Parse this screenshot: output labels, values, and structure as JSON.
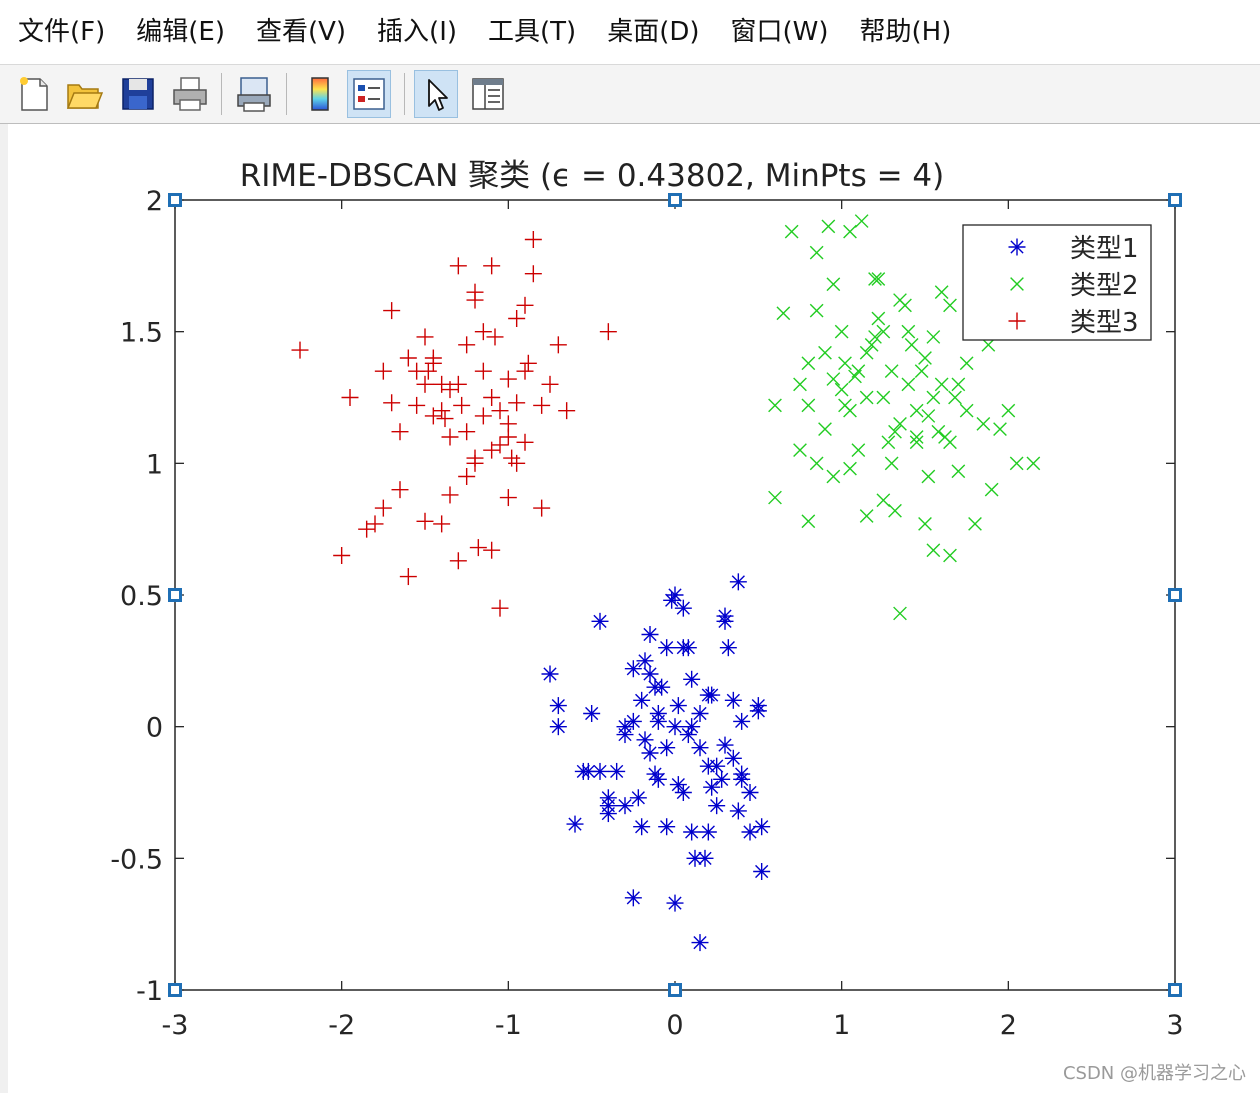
{
  "menu": {
    "items": [
      "文件(F)",
      "编辑(E)",
      "查看(V)",
      "插入(I)",
      "工具(T)",
      "桌面(D)",
      "窗口(W)",
      "帮助(H)"
    ]
  },
  "toolbar": {
    "buttons": [
      {
        "icon": "new-file-icon"
      },
      {
        "icon": "open-folder-icon"
      },
      {
        "icon": "save-icon"
      },
      {
        "icon": "print-icon"
      },
      {
        "icon": "print-preview-icon"
      },
      {
        "icon": "colorbar-icon"
      },
      {
        "icon": "legend-icon",
        "active": true
      },
      {
        "icon": "pointer-icon",
        "active": true
      },
      {
        "icon": "property-editor-icon"
      }
    ]
  },
  "watermark": "CSDN @机器学习之心",
  "chart_data": {
    "type": "scatter",
    "title": "RIME-DBSCAN 聚类 (ϵ = 0.43802, MinPts = 4)",
    "xlabel": "",
    "ylabel": "",
    "xlim": [
      -3,
      3
    ],
    "ylim": [
      -1,
      2
    ],
    "xticks": [
      "-3",
      "-2",
      "-1",
      "0",
      "1",
      "2",
      "3"
    ],
    "yticks": [
      "-1",
      "-0.5",
      "0",
      "0.5",
      "1",
      "1.5",
      "2"
    ],
    "grid": false,
    "legend_position": "top-right",
    "series": [
      {
        "name": "类型1",
        "marker": "*",
        "color": "#0000cc",
        "x": [
          -0.75,
          -0.7,
          -0.7,
          -0.5,
          -0.55,
          -0.52,
          -0.45,
          -0.4,
          -0.4,
          -0.4,
          -0.35,
          -0.3,
          -0.3,
          -0.25,
          -0.22,
          -0.2,
          -0.18,
          -0.15,
          -0.12,
          -0.1,
          -0.1,
          -0.08,
          -0.05,
          -0.02,
          0,
          0.02,
          0.05,
          0.08,
          0.1,
          0.12,
          0.15,
          0.18,
          0.2,
          0.22,
          0.25,
          0.28,
          0.3,
          0.32,
          0.35,
          0.38,
          0.4,
          0.45,
          0.5,
          0.52,
          -0.6,
          -0.25,
          -0.15,
          0.0,
          0.1,
          0.3,
          -0.05,
          -0.2,
          0.05,
          0.2,
          0.35,
          0.45,
          -0.3,
          -0.1,
          0.15,
          0.4,
          -0.45,
          -0.15,
          0.05,
          0.25,
          0.5,
          0.52,
          0.0,
          0.15,
          -0.25,
          0.1,
          0.3,
          0.4,
          0.2,
          -0.05,
          0.08,
          -0.12,
          0.38,
          0.22,
          -0.18,
          0.02
        ],
        "y": [
          0.2,
          0.08,
          0.0,
          0.05,
          -0.17,
          -0.17,
          -0.17,
          -0.3,
          -0.27,
          -0.33,
          -0.17,
          -0.3,
          -0.03,
          -0.65,
          -0.27,
          0.1,
          0.25,
          0.35,
          0.15,
          0.05,
          -0.2,
          0.15,
          0.3,
          0.48,
          0.0,
          -0.22,
          0.45,
          0.3,
          0.0,
          -0.5,
          -0.82,
          -0.5,
          -0.4,
          0.12,
          -0.3,
          -0.2,
          -0.07,
          0.3,
          0.1,
          0.55,
          -0.18,
          -0.25,
          0.08,
          -0.55,
          -0.37,
          0.22,
          0.2,
          0.5,
          0.18,
          0.42,
          -0.08,
          -0.38,
          -0.25,
          -0.15,
          -0.12,
          -0.4,
          0.0,
          0.02,
          0.05,
          0.02,
          0.4,
          -0.1,
          0.3,
          -0.15,
          0.06,
          -0.38,
          -0.67,
          -0.08,
          0.02,
          -0.4,
          0.4,
          -0.2,
          0.12,
          -0.38,
          -0.03,
          -0.18,
          -0.32,
          -0.23,
          -0.05,
          0.08
        ]
      },
      {
        "name": "类型2",
        "marker": "x",
        "color": "#22cc22",
        "x": [
          0.6,
          0.6,
          0.65,
          0.75,
          0.75,
          0.8,
          0.8,
          0.8,
          0.85,
          0.85,
          0.9,
          0.9,
          0.95,
          0.95,
          1.0,
          1.0,
          1.05,
          1.05,
          1.1,
          1.1,
          1.15,
          1.15,
          1.2,
          1.2,
          1.25,
          1.25,
          1.3,
          1.3,
          1.35,
          1.35,
          1.4,
          1.4,
          1.45,
          1.45,
          1.5,
          1.5,
          1.55,
          1.55,
          1.6,
          1.6,
          1.65,
          1.65,
          1.7,
          1.7,
          1.75,
          1.8,
          1.85,
          1.9,
          1.95,
          2.0,
          2.05,
          2.15,
          0.7,
          0.85,
          0.95,
          1.05,
          1.15,
          1.25,
          1.35,
          1.45,
          1.55,
          1.65,
          1.75,
          1.12,
          1.22,
          1.32,
          1.42,
          1.52,
          1.62,
          0.92,
          1.02,
          1.08,
          1.18,
          1.28,
          1.38,
          1.48,
          1.58,
          1.68,
          1.88,
          1.02,
          1.22,
          1.32,
          1.52
        ],
        "y": [
          1.22,
          0.87,
          1.57,
          1.3,
          1.05,
          1.38,
          1.22,
          0.78,
          1.58,
          1.0,
          1.42,
          1.13,
          1.32,
          0.95,
          1.5,
          1.28,
          1.2,
          0.98,
          1.35,
          1.05,
          1.25,
          0.8,
          1.7,
          1.48,
          1.5,
          0.86,
          1.35,
          1.0,
          1.15,
          0.43,
          1.5,
          1.3,
          1.2,
          1.08,
          1.4,
          0.77,
          1.25,
          0.67,
          1.65,
          1.3,
          1.08,
          0.65,
          1.3,
          0.97,
          1.2,
          0.77,
          1.15,
          0.9,
          1.13,
          1.2,
          1.0,
          1.0,
          1.88,
          1.8,
          1.68,
          1.88,
          1.42,
          1.25,
          1.62,
          1.1,
          1.48,
          1.6,
          1.38,
          1.92,
          1.7,
          1.12,
          1.45,
          1.18,
          1.1,
          1.9,
          1.22,
          1.33,
          1.45,
          1.08,
          1.6,
          1.35,
          1.12,
          1.25,
          1.45,
          1.38,
          1.55,
          0.82,
          0.95
        ]
      },
      {
        "name": "类型3",
        "marker": "+",
        "color": "#cc0000",
        "x": [
          -2.25,
          -2.0,
          -1.95,
          -1.8,
          -1.75,
          -1.7,
          -1.7,
          -1.65,
          -1.6,
          -1.55,
          -1.5,
          -1.5,
          -1.45,
          -1.45,
          -1.4,
          -1.4,
          -1.35,
          -1.35,
          -1.3,
          -1.3,
          -1.25,
          -1.25,
          -1.2,
          -1.2,
          -1.15,
          -1.15,
          -1.1,
          -1.1,
          -1.05,
          -1.05,
          -1.0,
          -1.0,
          -0.95,
          -0.95,
          -0.9,
          -0.9,
          -0.85,
          -0.85,
          -0.8,
          -0.8,
          -0.75,
          -0.7,
          -0.65,
          -0.4,
          -1.85,
          -1.75,
          -1.65,
          -1.55,
          -1.45,
          -1.35,
          -1.25,
          -1.15,
          -1.05,
          -0.95,
          -1.3,
          -1.2,
          -1.1,
          -1.0,
          -0.9,
          -1.6,
          -1.5,
          -1.4,
          -1.2,
          -1.1,
          -1.08,
          -1.38,
          -1.48,
          -1.28,
          -1.18,
          -1.0,
          -0.88,
          -0.98
        ],
        "y": [
          1.43,
          0.65,
          1.25,
          0.77,
          1.35,
          1.58,
          1.23,
          0.9,
          1.4,
          1.22,
          0.78,
          1.48,
          1.38,
          1.18,
          1.3,
          0.77,
          1.1,
          0.88,
          1.75,
          1.3,
          1.45,
          0.95,
          1.65,
          1.0,
          1.5,
          1.18,
          1.05,
          0.67,
          1.07,
          0.45,
          1.32,
          0.87,
          1.23,
          1.0,
          1.6,
          1.08,
          1.85,
          1.72,
          1.22,
          0.83,
          1.3,
          1.45,
          1.2,
          1.5,
          0.75,
          0.83,
          1.12,
          1.35,
          1.4,
          1.28,
          1.12,
          1.35,
          1.2,
          1.55,
          0.63,
          1.02,
          1.25,
          1.1,
          1.35,
          0.57,
          1.3,
          1.2,
          1.62,
          1.75,
          1.48,
          1.17,
          1.35,
          1.22,
          0.68,
          1.15,
          1.38,
          1.02
        ]
      }
    ]
  }
}
